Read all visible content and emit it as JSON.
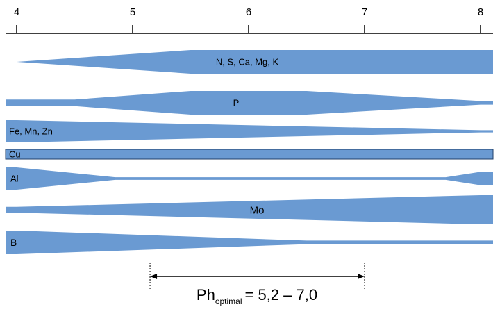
{
  "scale": {
    "ticks": [
      "4",
      "5",
      "6",
      "7",
      "8"
    ],
    "min": 4,
    "max": 8
  },
  "bands": [
    {
      "label": "N, S, Ca, Mg, K",
      "profile": [
        [
          4.0,
          0.0
        ],
        [
          5.5,
          1.0
        ],
        [
          8.0,
          1.0
        ]
      ]
    },
    {
      "label": "P",
      "profile": [
        [
          4.0,
          0.28
        ],
        [
          4.5,
          0.28
        ],
        [
          5.5,
          1.0
        ],
        [
          6.5,
          1.0
        ],
        [
          8.0,
          0.15
        ]
      ]
    },
    {
      "label": "Fe, Mn, Zn",
      "profile": [
        [
          4.0,
          1.0
        ],
        [
          8.0,
          0.1
        ]
      ]
    },
    {
      "label": "Cu",
      "profile": [
        [
          4.0,
          1.0
        ],
        [
          8.0,
          1.0
        ]
      ]
    },
    {
      "label": "Al",
      "profile": [
        [
          4.0,
          1.0
        ],
        [
          4.85,
          0.12
        ],
        [
          7.7,
          0.12
        ],
        [
          8.0,
          0.6
        ]
      ]
    },
    {
      "label": "Mo",
      "profile": [
        [
          4.0,
          0.2
        ],
        [
          8.0,
          1.0
        ]
      ]
    },
    {
      "label": "B",
      "profile": [
        [
          4.0,
          1.0
        ],
        [
          6.5,
          0.15
        ],
        [
          8.0,
          0.15
        ]
      ]
    }
  ],
  "optimal": {
    "from": 5.15,
    "to": 7.0,
    "caption_main": "Ph",
    "caption_sub": "optimal",
    "caption_range": "= 5,2 – 7,0"
  }
}
